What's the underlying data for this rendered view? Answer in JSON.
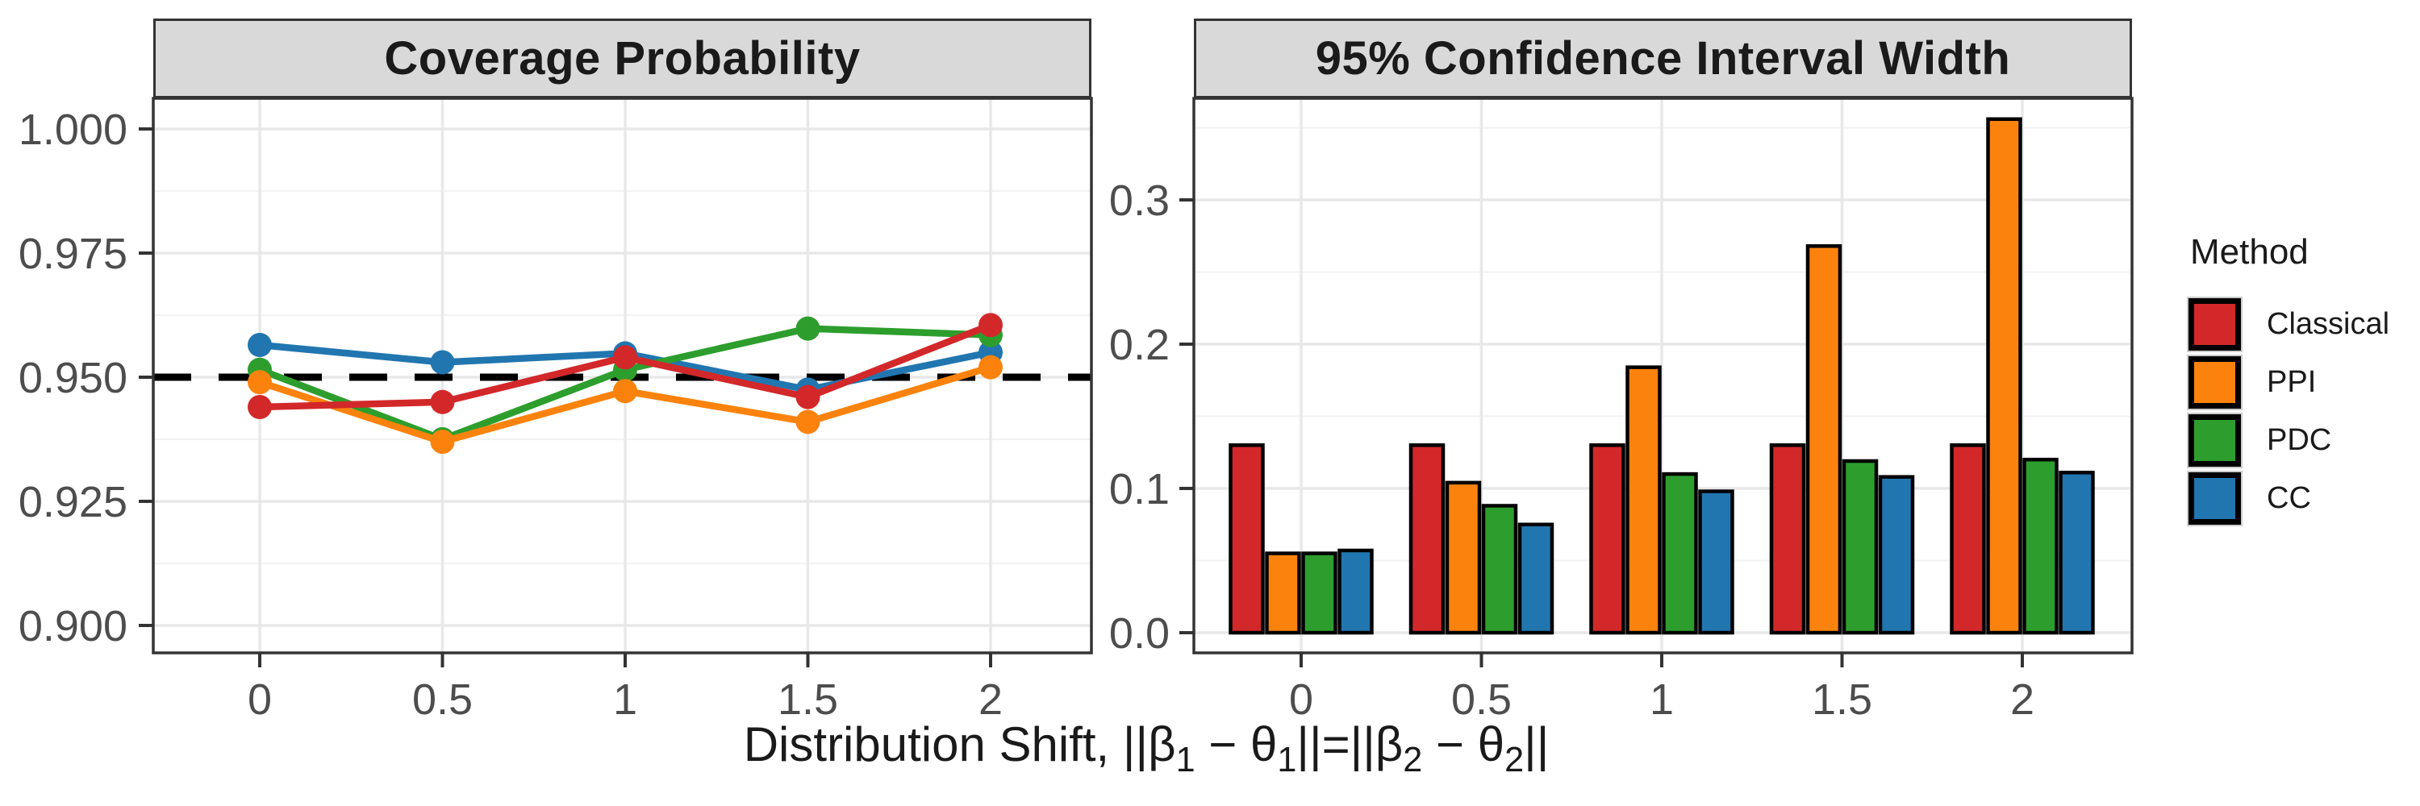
{
  "figure": {
    "background": "#ffffff",
    "x_axis_title_segments": [
      {
        "t": "Distribution Shift, ||β"
      },
      {
        "t": "1",
        "sub": true
      },
      {
        "t": " − θ"
      },
      {
        "t": "1",
        "sub": true
      },
      {
        "t": "||=||β"
      },
      {
        "t": "2",
        "sub": true
      },
      {
        "t": " − θ"
      },
      {
        "t": "2",
        "sub": true
      },
      {
        "t": "||"
      }
    ]
  },
  "legend": {
    "title": "Method",
    "items": [
      {
        "label": "Classical",
        "color": "#d2282a"
      },
      {
        "label": "PPI",
        "color": "#fb830d"
      },
      {
        "label": "PDC",
        "color": "#2d9e2d"
      },
      {
        "label": "CC",
        "color": "#2176b0"
      }
    ]
  },
  "style": {
    "strip_bg": "#d9d9d9",
    "panel_border": "#333333",
    "grid_major": "#e8e8e8",
    "grid_minor": "#f3f3f3",
    "tick_label_color": "#4d4d4d",
    "reference_line_color": "#000000"
  },
  "chart_data": [
    {
      "type": "line",
      "title": "Coverage Probability",
      "x": [
        0,
        0.5,
        1,
        1.5,
        2
      ],
      "x_tick_labels": [
        "0",
        "0.5",
        "1",
        "1.5",
        "2"
      ],
      "y_ticks": [
        0.9,
        0.925,
        0.95,
        0.975,
        1.0
      ],
      "y_tick_labels": [
        "0.900",
        "0.925",
        "0.950",
        "0.975",
        "1.000"
      ],
      "ylim": [
        0.8945,
        1.0062
      ],
      "grid": true,
      "reference_line": {
        "y": 0.95,
        "style": "dashed",
        "color": "#000000"
      },
      "series": [
        {
          "name": "Classical",
          "color": "#d2282a",
          "values": [
            0.944,
            0.945,
            0.954,
            0.946,
            0.9605
          ]
        },
        {
          "name": "PPI",
          "color": "#fb830d",
          "values": [
            0.949,
            0.937,
            0.9472,
            0.941,
            0.952
          ]
        },
        {
          "name": "PDC",
          "color": "#2d9e2d",
          "values": [
            0.9515,
            0.9375,
            0.9515,
            0.9598,
            0.9585
          ]
        },
        {
          "name": "CC",
          "color": "#2176b0",
          "values": [
            0.9565,
            0.953,
            0.9548,
            0.9475,
            0.955
          ]
        }
      ]
    },
    {
      "type": "bar",
      "title": "95% Confidence Interval Width",
      "categories": [
        "0",
        "0.5",
        "1",
        "1.5",
        "2"
      ],
      "y_ticks": [
        0.0,
        0.1,
        0.2,
        0.3
      ],
      "y_tick_labels": [
        "0.0",
        "0.1",
        "0.2",
        "0.3"
      ],
      "ylim": [
        -0.014,
        0.3705
      ],
      "grid": true,
      "series": [
        {
          "name": "Classical",
          "color": "#d2282a",
          "values": [
            0.13,
            0.13,
            0.13,
            0.13,
            0.13
          ]
        },
        {
          "name": "PPI",
          "color": "#fb830d",
          "values": [
            0.055,
            0.104,
            0.184,
            0.268,
            0.356
          ]
        },
        {
          "name": "PDC",
          "color": "#2d9e2d",
          "values": [
            0.055,
            0.088,
            0.11,
            0.119,
            0.12
          ]
        },
        {
          "name": "CC",
          "color": "#2176b0",
          "values": [
            0.057,
            0.075,
            0.098,
            0.108,
            0.111
          ]
        }
      ]
    }
  ]
}
